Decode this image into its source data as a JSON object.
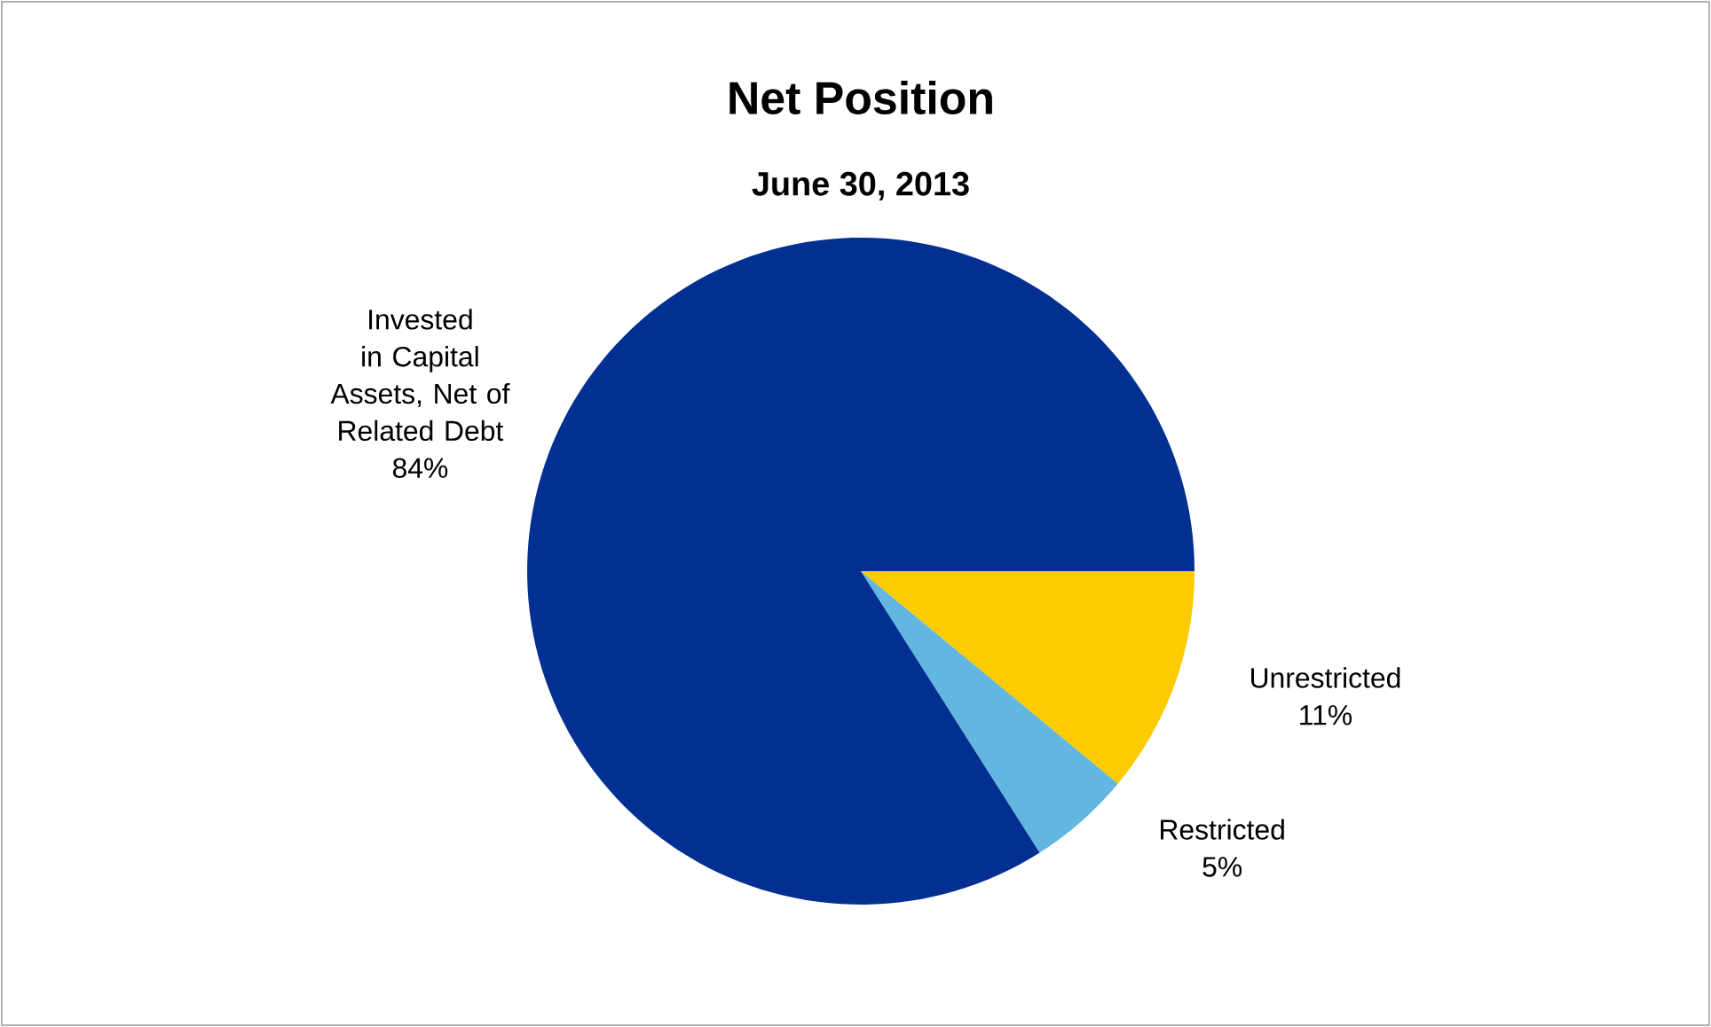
{
  "chart_data": {
    "type": "pie",
    "title": "Net Position",
    "subtitle": "June 30, 2013",
    "categories": [
      "Unrestricted",
      "Restricted",
      "Invested in Capital Assets, Net of Related Debt"
    ],
    "values": [
      11,
      5,
      84
    ],
    "value_labels": [
      "11%",
      "5%",
      "84%"
    ],
    "colors": [
      "#fccb00",
      "#62b6e0",
      "#023092"
    ]
  }
}
